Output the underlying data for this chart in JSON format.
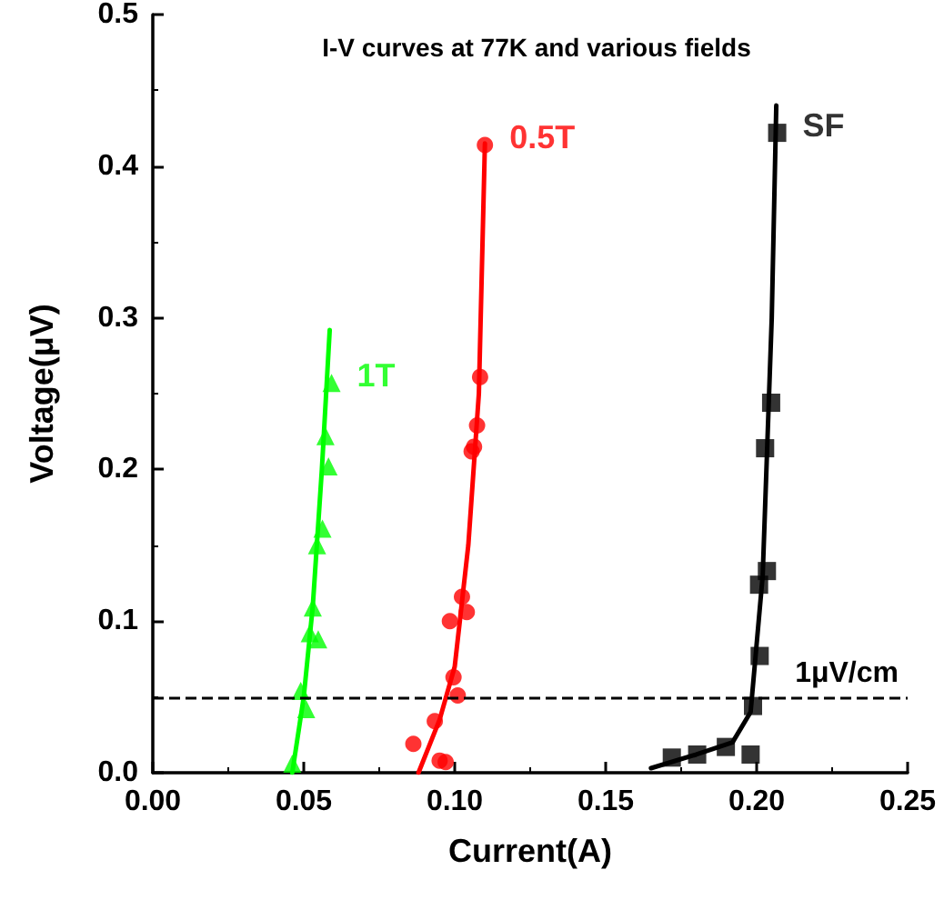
{
  "chart_data": {
    "type": "scatter",
    "title": "I-V curves at 77K and various fields",
    "xlabel": "Current(A)",
    "ylabel": "Voltage(μV)",
    "xlim": [
      0,
      0.25
    ],
    "xticks": [
      {
        "value": 0,
        "label": "0.00"
      },
      0.05,
      {
        "value": 0.1,
        "label": "0.10"
      },
      0.15,
      {
        "value": 0.2,
        "label": "0.20"
      },
      0.25
    ],
    "ylim": [
      0,
      0.5
    ],
    "yticks": [
      {
        "value": 0,
        "label": "0.0"
      },
      0.1,
      0.2,
      0.3,
      0.4,
      0.5
    ],
    "grid": false,
    "legend": false,
    "series": [
      {
        "name": "1T",
        "color": "#00ff00",
        "marker": "triangle",
        "x": [
          0.0462,
          0.0508,
          0.049,
          0.0548,
          0.052,
          0.053,
          0.0544,
          0.0562,
          0.0582,
          0.0572,
          0.0592
        ],
        "values": [
          0.006,
          0.042,
          0.054,
          0.088,
          0.092,
          0.109,
          0.15,
          0.161,
          0.202,
          0.222,
          0.257
        ]
      },
      {
        "type": "line",
        "color": "#00ff00",
        "marker": "none",
        "x": [
          0.0462,
          0.05,
          0.053,
          0.056,
          0.0586
        ],
        "values": [
          0,
          0.05,
          0.11,
          0.2,
          0.292
        ]
      },
      {
        "name": "0.5T",
        "color": "#ff0000",
        "marker": "circle",
        "x": [
          0.0863,
          0.0934,
          0.095,
          0.097,
          0.0996,
          0.101,
          0.0984,
          0.1024,
          0.104,
          0.1056,
          0.1064,
          0.1074,
          0.1084,
          0.11
        ],
        "values": [
          0.019,
          0.034,
          0.008,
          0.007,
          0.063,
          0.051,
          0.1,
          0.116,
          0.106,
          0.212,
          0.215,
          0.229,
          0.261,
          0.414
        ]
      },
      {
        "type": "line",
        "color": "#ff0000",
        "marker": "none",
        "x": [
          0.088,
          0.095,
          0.1,
          0.1045,
          0.108,
          0.11
        ],
        "values": [
          0,
          0.035,
          0.07,
          0.15,
          0.25,
          0.415
        ]
      },
      {
        "name": "SF",
        "color": "#000000",
        "marker": "square",
        "x": [
          0.1719,
          0.1803,
          0.1898,
          0.198,
          0.1988,
          0.201,
          0.2034,
          0.2008,
          0.2028,
          0.2048,
          0.2068
        ],
        "values": [
          0.01,
          0.012,
          0.017,
          0.012,
          0.044,
          0.077,
          0.133,
          0.124,
          0.214,
          0.244,
          0.422
        ]
      },
      {
        "type": "line",
        "color": "#000000",
        "marker": "none",
        "x": [
          0.165,
          0.18,
          0.192,
          0.198,
          0.202,
          0.205,
          0.2065
        ],
        "values": [
          0.003,
          0.012,
          0.02,
          0.04,
          0.13,
          0.3,
          0.44
        ]
      }
    ],
    "ref_lines": [
      {
        "axis": "y",
        "value": 0.05,
        "label": "1μV/cm",
        "line_style": "dashed",
        "color": "#000000"
      }
    ]
  }
}
